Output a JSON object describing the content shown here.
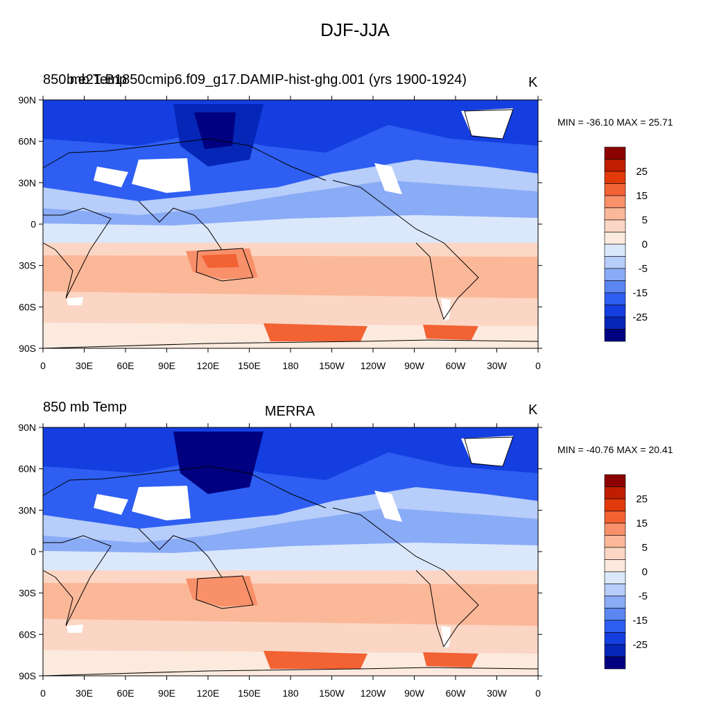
{
  "title": "DJF-JJA",
  "colorbar": {
    "labels": [
      "25",
      "15",
      "5",
      "0",
      "-5",
      "-15",
      "-25"
    ],
    "colors": [
      "#8b0000",
      "#bf1f00",
      "#e33a0c",
      "#f26233",
      "#f8906a",
      "#fbb899",
      "#fcd6c4",
      "#fdeade",
      "#dbe8fb",
      "#b7cdfa",
      "#8aabf6",
      "#5b86f2",
      "#2e5ef2",
      "#143ee0",
      "#0526b6",
      "#000080"
    ]
  },
  "panels": [
    {
      "id": "model",
      "left_label": "850 mb Temp",
      "left_label_overlap": "b.e21.B1850cmip6.f09_g17.DAMIP-hist-ghg.001 (yrs 1900-1924)",
      "center_label": "",
      "units": "K",
      "minmax": "MIN = -36.10 MAX =  25.71"
    },
    {
      "id": "obs",
      "left_label": "850 mb Temp",
      "left_label_overlap": "",
      "center_label": "MERRA",
      "units": "K",
      "minmax": "MIN = -40.76 MAX =  20.41"
    }
  ],
  "axes": {
    "lat_labels": [
      "90N",
      "60N",
      "30N",
      "0",
      "30S",
      "60S",
      "90S"
    ],
    "lon_labels": [
      "0",
      "30E",
      "60E",
      "90E",
      "120E",
      "150E",
      "180",
      "150W",
      "120W",
      "90W",
      "60W",
      "30W",
      "0"
    ]
  }
}
